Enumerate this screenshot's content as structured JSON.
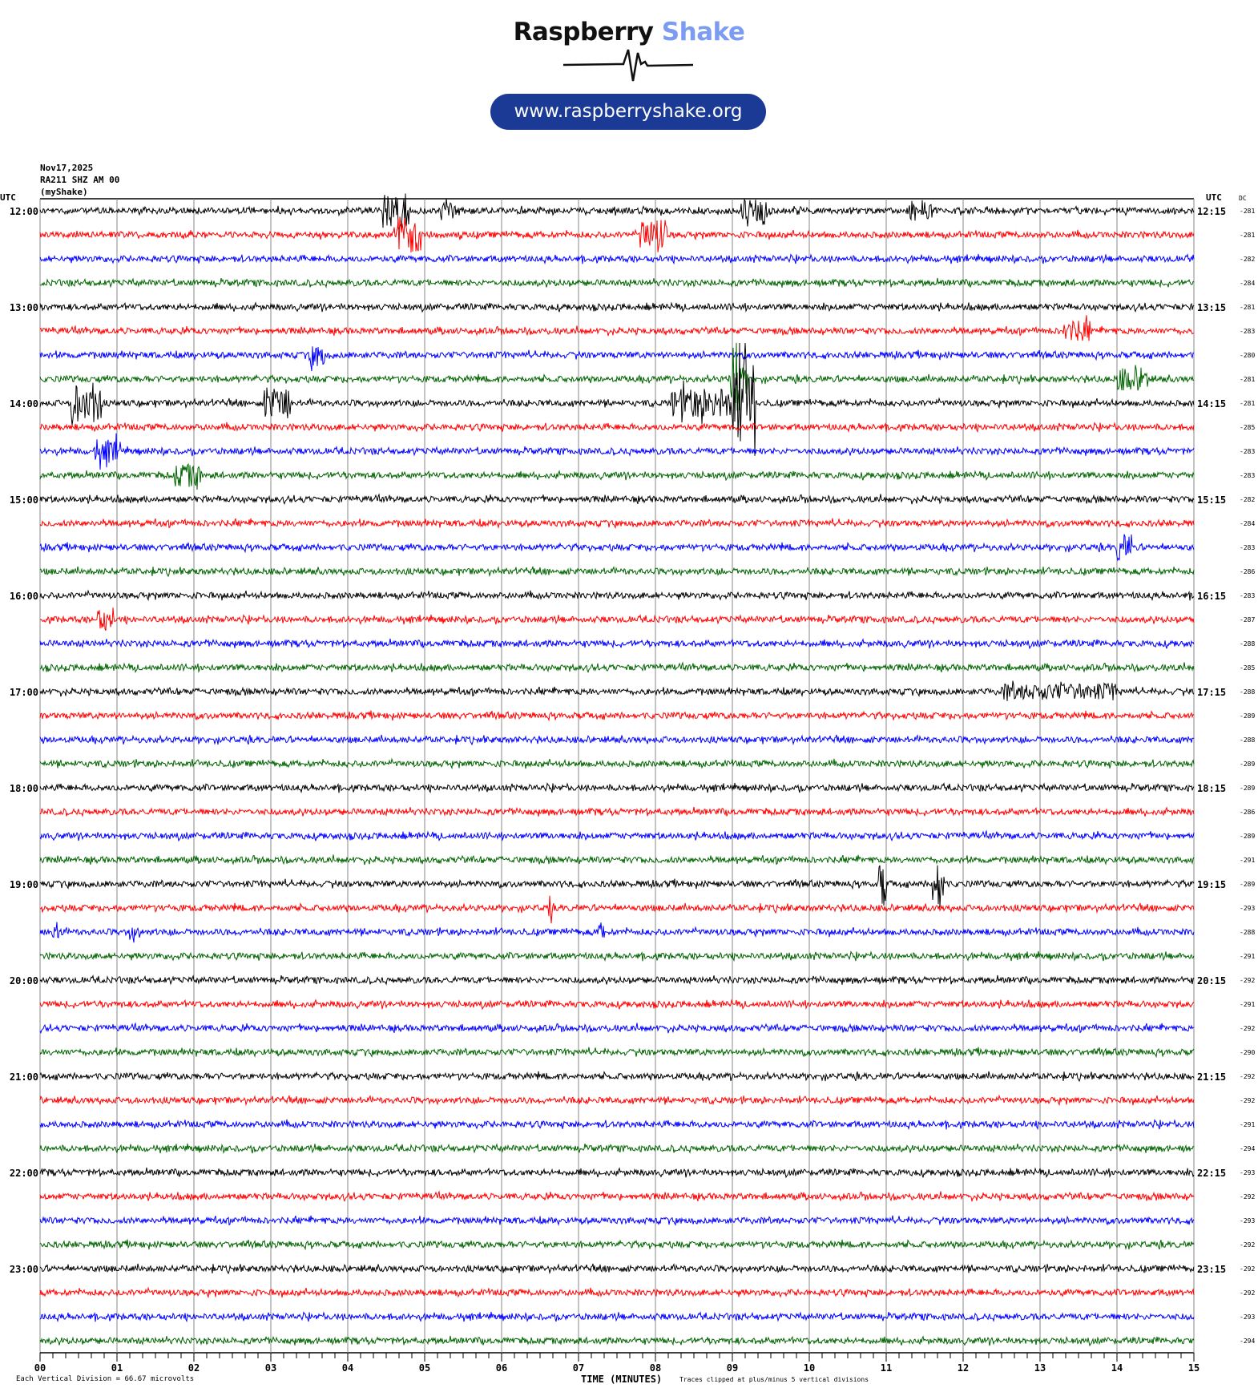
{
  "logo": {
    "brand_dark": "Raspberry",
    "brand_light": "Shake",
    "url": "www.raspberryshake.org",
    "brand_color": "#7b9cf0",
    "pill_color": "#1a3a96"
  },
  "header": {
    "date": "Nov17,2025",
    "station": "RA211 SHZ AM 00",
    "network": "(myShake)"
  },
  "footer": {
    "scale": "Each Vertical Division =    66.67 microvolts",
    "xlabel": "TIME (MINUTES)",
    "clip_note": "Traces clipped at plus/minus 5 vertical divisions"
  },
  "chart_data": {
    "type": "line",
    "subtype": "helicorder",
    "xlabel": "TIME (MINUTES)",
    "xlim": [
      0,
      15
    ],
    "x_ticks": [
      "00",
      "01",
      "02",
      "03",
      "04",
      "05",
      "06",
      "07",
      "08",
      "09",
      "10",
      "11",
      "12",
      "13",
      "14",
      "15"
    ],
    "minor_tick_seconds": 10,
    "grid": "vertical lines every minute",
    "left_header": "UTC",
    "right_header": "UTC",
    "dc_header": "DC",
    "trace_colors": [
      "#000000",
      "#ff0000",
      "#0000ff",
      "#006400"
    ],
    "left_labels": [
      "12:00",
      "13:00",
      "14:00",
      "15:00",
      "16:00",
      "17:00",
      "18:00",
      "19:00",
      "20:00",
      "21:00",
      "22:00",
      "23:00"
    ],
    "right_labels": [
      "12:15",
      "13:15",
      "14:15",
      "15:15",
      "16:15",
      "17:15",
      "18:15",
      "19:15",
      "20:15",
      "21:15",
      "22:15",
      "23:15"
    ],
    "dc_values": [
      "-281",
      "-281",
      "-282",
      "-284",
      "-281",
      "-283",
      "-280",
      "-281",
      "-281",
      "-285",
      "-283",
      "-283",
      "-282",
      "-284",
      "-283",
      "-286",
      "-283",
      "-287",
      "-288",
      "-285",
      "-288",
      "-289",
      "-288",
      "-289",
      "-289",
      "-286",
      "-289",
      "-291",
      "-289",
      "-293",
      "-288",
      "-291",
      "-292",
      "-291",
      "-292",
      "-290",
      "-292",
      "-292",
      "-291",
      "-294",
      "-293",
      "-292",
      "-293",
      "-292",
      "-292",
      "-292",
      "-293",
      "-294"
    ],
    "events": [
      {
        "trace": 0,
        "start_min": 4.45,
        "end_min": 4.8,
        "amp": 1.0
      },
      {
        "trace": 0,
        "start_min": 5.2,
        "end_min": 5.4,
        "amp": 0.5
      },
      {
        "trace": 0,
        "start_min": 9.1,
        "end_min": 9.45,
        "amp": 0.6
      },
      {
        "trace": 0,
        "start_min": 11.3,
        "end_min": 11.6,
        "amp": 0.6
      },
      {
        "trace": 1,
        "start_min": 4.6,
        "end_min": 4.95,
        "amp": 1.1
      },
      {
        "trace": 1,
        "start_min": 7.8,
        "end_min": 8.15,
        "amp": 0.9
      },
      {
        "trace": 5,
        "start_min": 13.3,
        "end_min": 13.65,
        "amp": 0.5
      },
      {
        "trace": 6,
        "start_min": 3.5,
        "end_min": 3.7,
        "amp": 0.6
      },
      {
        "trace": 7,
        "start_min": 8.95,
        "end_min": 9.1,
        "amp": 2.2
      },
      {
        "trace": 7,
        "start_min": 9.0,
        "end_min": 9.2,
        "amp": 0.6
      },
      {
        "trace": 7,
        "start_min": 14.0,
        "end_min": 14.4,
        "amp": 0.6
      },
      {
        "trace": 8,
        "start_min": 0.4,
        "end_min": 0.8,
        "amp": 1.1
      },
      {
        "trace": 8,
        "start_min": 2.9,
        "end_min": 3.25,
        "amp": 0.9
      },
      {
        "trace": 8,
        "start_min": 8.2,
        "end_min": 9.0,
        "amp": 0.8
      },
      {
        "trace": 8,
        "start_min": 9.0,
        "end_min": 9.3,
        "amp": 3.0
      },
      {
        "trace": 10,
        "start_min": 0.7,
        "end_min": 1.05,
        "amp": 0.6
      },
      {
        "trace": 11,
        "start_min": 1.75,
        "end_min": 2.1,
        "amp": 0.6
      },
      {
        "trace": 14,
        "start_min": 14.0,
        "end_min": 14.2,
        "amp": 0.7
      },
      {
        "trace": 17,
        "start_min": 0.75,
        "end_min": 0.95,
        "amp": 0.6
      },
      {
        "trace": 20,
        "start_min": 12.5,
        "end_min": 14.0,
        "amp": 0.35
      },
      {
        "trace": 28,
        "start_min": 10.9,
        "end_min": 11.0,
        "amp": 1.4
      },
      {
        "trace": 28,
        "start_min": 11.6,
        "end_min": 11.75,
        "amp": 1.8
      },
      {
        "trace": 29,
        "start_min": 6.6,
        "end_min": 6.65,
        "amp": 0.9
      },
      {
        "trace": 30,
        "start_min": 0.15,
        "end_min": 0.3,
        "amp": 0.4
      },
      {
        "trace": 30,
        "start_min": 1.15,
        "end_min": 1.3,
        "amp": 0.4
      },
      {
        "trace": 30,
        "start_min": 7.25,
        "end_min": 7.35,
        "amp": 0.4
      }
    ]
  }
}
